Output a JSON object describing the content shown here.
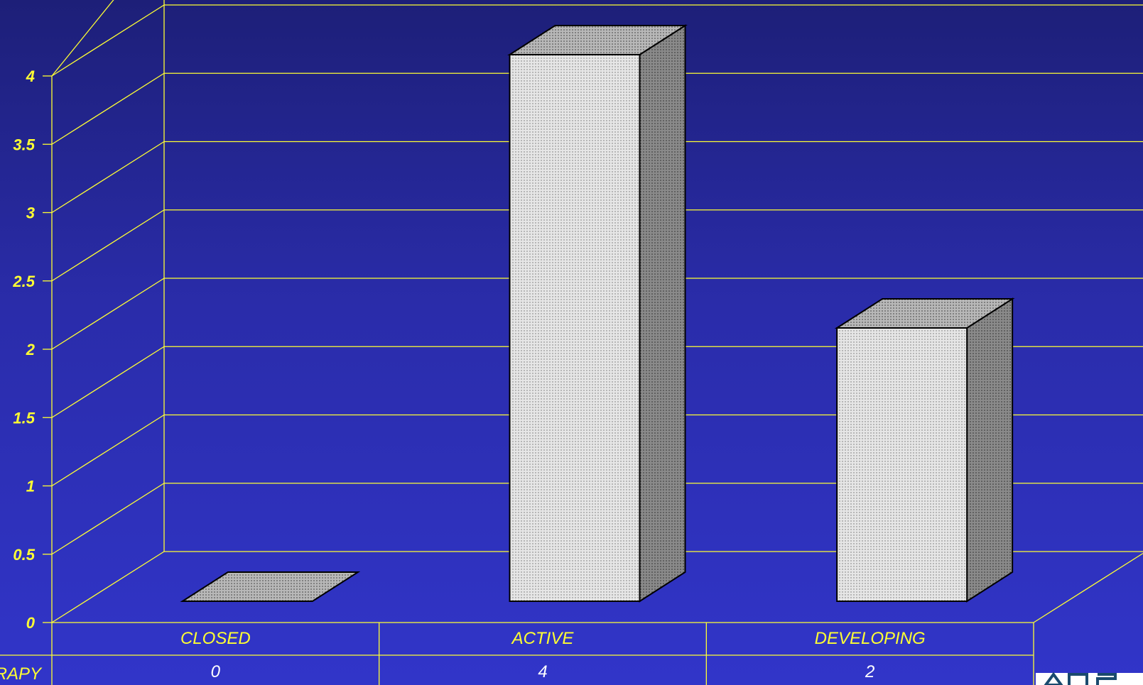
{
  "chart_data": {
    "type": "bar",
    "style": "3d",
    "categories": [
      "CLOSED",
      "ACTIVE",
      "DEVELOPING"
    ],
    "series": [
      {
        "name": "RAPY",
        "values": [
          0,
          4,
          2
        ]
      }
    ],
    "ylim": [
      0,
      4
    ],
    "yticks": [
      "0",
      "0.5",
      "1",
      "1.5",
      "2",
      "2.5",
      "3",
      "3.5",
      "4"
    ],
    "ytick_values": [
      0,
      0.5,
      1,
      1.5,
      2,
      2.5,
      3,
      3.5,
      4
    ],
    "grid": true,
    "data_table": {
      "row_label": "RAPY",
      "values": [
        "0",
        "4",
        "2"
      ]
    }
  },
  "colors": {
    "grid": "#ffff33",
    "bar_front": "#d9d9d9",
    "bar_top": "#a9a9a9",
    "bar_side": "#777777",
    "text": "#ffff33",
    "value_text": "#ffffff"
  }
}
